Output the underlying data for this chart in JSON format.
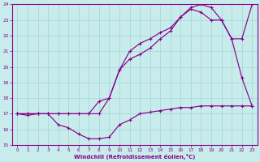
{
  "xlabel": "Windchill (Refroidissement éolien,°C)",
  "bg_color": "#c8ecec",
  "grid_color": "#a8d8d8",
  "line_color": "#880088",
  "xlim": [
    -0.5,
    23.5
  ],
  "ylim": [
    15,
    24
  ],
  "xticks": [
    0,
    1,
    2,
    3,
    4,
    5,
    6,
    7,
    8,
    9,
    10,
    11,
    12,
    13,
    14,
    15,
    16,
    17,
    18,
    19,
    20,
    21,
    22,
    23
  ],
  "yticks": [
    15,
    16,
    17,
    18,
    19,
    20,
    21,
    22,
    23,
    24
  ],
  "line1_x": [
    0,
    1,
    2,
    3,
    4,
    5,
    6,
    7,
    8,
    9,
    10,
    11,
    12,
    13,
    14,
    15,
    16,
    17,
    18,
    19,
    20,
    21,
    22,
    23
  ],
  "line1_y": [
    17.0,
    16.9,
    17.0,
    17.0,
    16.3,
    16.1,
    15.7,
    15.4,
    15.4,
    15.5,
    16.3,
    16.6,
    17.0,
    17.1,
    17.2,
    17.3,
    17.4,
    17.4,
    17.5,
    17.5,
    17.5,
    17.5,
    17.5,
    17.5
  ],
  "line2_x": [
    0,
    1,
    2,
    3,
    4,
    5,
    6,
    7,
    8,
    9,
    10,
    11,
    12,
    13,
    14,
    15,
    16,
    17,
    18,
    19,
    20,
    21,
    22,
    23
  ],
  "line2_y": [
    17.0,
    17.0,
    17.0,
    17.0,
    17.0,
    17.0,
    17.0,
    17.0,
    17.8,
    18.0,
    19.8,
    20.5,
    20.8,
    21.2,
    21.8,
    22.3,
    23.2,
    23.7,
    23.5,
    23.0,
    23.0,
    21.8,
    19.3,
    17.5
  ],
  "line3_x": [
    0,
    1,
    2,
    3,
    4,
    5,
    6,
    7,
    8,
    9,
    10,
    11,
    12,
    13,
    14,
    15,
    16,
    17,
    18,
    19,
    20,
    21,
    22,
    23
  ],
  "line3_y": [
    17.0,
    17.0,
    17.0,
    17.0,
    17.0,
    17.0,
    17.0,
    17.0,
    17.0,
    18.0,
    19.8,
    21.0,
    21.5,
    21.8,
    22.2,
    22.5,
    23.2,
    23.8,
    24.0,
    23.8,
    23.0,
    21.8,
    21.8,
    24.0
  ]
}
